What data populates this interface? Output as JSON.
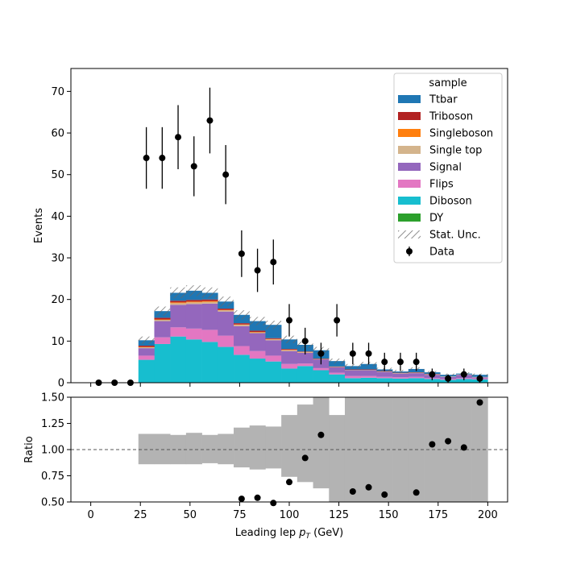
{
  "chart_data": [
    {
      "type": "stacked-histogram",
      "ylabel": "Events",
      "xlim": [
        -10,
        210
      ],
      "ylim": [
        0,
        75.5
      ],
      "x_ticks": [
        0,
        25,
        50,
        75,
        100,
        125,
        150,
        175,
        200
      ],
      "y_ticks": [
        0,
        10,
        20,
        30,
        40,
        50,
        60,
        70
      ],
      "bin_edges": [
        24,
        32,
        40,
        48,
        56,
        64,
        72,
        80,
        88,
        96,
        104,
        112,
        120,
        128,
        136,
        144,
        152,
        160,
        168,
        176,
        184,
        192,
        200
      ],
      "series": [
        {
          "name": "Diboson",
          "color": "#17becf",
          "values": [
            5.5,
            9.3,
            11.1,
            10.4,
            9.8,
            8.6,
            6.7,
            5.8,
            5.1,
            3.4,
            4.0,
            3.0,
            2.0,
            1.1,
            1.2,
            1.1,
            1.0,
            1.1,
            0.9,
            0.7,
            0.9,
            0.8
          ]
        },
        {
          "name": "Flips",
          "color": "#e377c2",
          "values": [
            1.0,
            1.6,
            2.2,
            2.6,
            2.9,
            2.7,
            2.1,
            1.8,
            1.4,
            1.1,
            0.6,
            0.5,
            0.4,
            0.5,
            0.4,
            0.3,
            0.3,
            0.3,
            0.2,
            0.2,
            0.2,
            0.2
          ]
        },
        {
          "name": "Signal",
          "color": "#9467bd",
          "values": [
            1.8,
            3.9,
            5.4,
            5.9,
            6.3,
            5.8,
            4.8,
            4.3,
            3.7,
            3.1,
            2.6,
            2.1,
            1.3,
            1.4,
            1.4,
            1.2,
            0.9,
            0.9,
            0.8,
            0.5,
            0.8,
            0.3
          ]
        },
        {
          "name": "Single top",
          "color": "#d4b48c",
          "values": [
            0.2,
            0.3,
            0.4,
            0.4,
            0.4,
            0.3,
            0.3,
            0.2,
            0.2,
            0.2,
            0.1,
            0.1,
            0.1,
            0.1,
            0.1,
            0.1,
            0.1,
            0.1,
            0.1,
            0.1,
            0.1,
            0.1
          ]
        },
        {
          "name": "Singleboson",
          "color": "#ff7f0e",
          "values": [
            0.1,
            0.1,
            0.2,
            0.2,
            0.2,
            0.1,
            0.1,
            0.1,
            0.1,
            0.1,
            0.1,
            0.0,
            0.0,
            0.0,
            0.0,
            0.0,
            0.0,
            0.0,
            0.0,
            0.0,
            0.0,
            0.0
          ]
        },
        {
          "name": "Triboson",
          "color": "#b22222",
          "values": [
            0.3,
            0.4,
            0.4,
            0.4,
            0.4,
            0.3,
            0.3,
            0.3,
            0.2,
            0.2,
            0.1,
            0.1,
            0.1,
            0.1,
            0.1,
            0.1,
            0.1,
            0.1,
            0.1,
            0.0,
            0.0,
            0.0
          ]
        },
        {
          "name": "Ttbar",
          "color": "#1f77b4",
          "values": [
            1.3,
            1.6,
            1.9,
            2.2,
            1.6,
            1.7,
            2.0,
            2.3,
            3.2,
            2.3,
            1.6,
            2.0,
            1.3,
            0.8,
            1.3,
            0.4,
            0.3,
            0.8,
            0.4,
            0.4,
            0.2,
            0.5
          ]
        }
      ],
      "stat_unc": [
        0.9,
        1.1,
        1.3,
        1.3,
        1.3,
        1.2,
        1.1,
        1.0,
        1.0,
        0.9,
        0.8,
        0.8,
        0.6,
        0.5,
        0.5,
        0.4,
        0.4,
        0.4,
        0.3,
        0.3,
        0.3,
        0.3
      ],
      "data": {
        "name": "Data",
        "x": [
          4,
          12,
          20,
          28,
          36,
          44,
          52,
          60,
          68,
          76,
          84,
          92,
          100,
          108,
          116,
          124,
          132,
          140,
          148,
          156,
          164,
          172,
          180,
          188,
          196
        ],
        "y": [
          0,
          0,
          0,
          54,
          54,
          59,
          52,
          63,
          50,
          31,
          27,
          29,
          15,
          10,
          7,
          15,
          7,
          7,
          5,
          5,
          5,
          2,
          1,
          2,
          1
        ],
        "yerr": [
          0,
          0,
          0,
          7.4,
          7.4,
          7.7,
          7.2,
          7.9,
          7.1,
          5.6,
          5.2,
          5.4,
          3.9,
          3.2,
          2.6,
          3.9,
          2.6,
          2.6,
          2.2,
          2.2,
          2.2,
          1.4,
          1.0,
          1.4,
          1.0
        ]
      },
      "legend": {
        "title": "sample",
        "placement": "upper right",
        "entries": [
          "Ttbar",
          "Triboson",
          "Singleboson",
          "Single top",
          "Signal",
          "Flips",
          "Diboson",
          "DY",
          "Stat. Unc.",
          "Data"
        ],
        "colors": [
          "#1f77b4",
          "#b22222",
          "#ff7f0e",
          "#d4b48c",
          "#9467bd",
          "#e377c2",
          "#17becf",
          "#2ca02c",
          "hatch",
          "marker"
        ]
      }
    },
    {
      "type": "scatter-ratio",
      "xlabel_prefix": "Leading lep ",
      "xlabel_var": "p",
      "xlabel_sub": "T",
      "xlabel_suffix": " (GeV)",
      "ylabel": "Ratio",
      "xlim": [
        -10,
        210
      ],
      "ylim": [
        0.5,
        1.5
      ],
      "x_ticks": [
        0,
        25,
        50,
        75,
        100,
        125,
        150,
        175,
        200
      ],
      "y_ticks": [
        "0.50",
        "0.75",
        "1.00",
        "1.25",
        "1.50"
      ],
      "reference_line": 1.0,
      "unc_band_color": "#b3b3b3",
      "unc_band": [
        [
          0.86,
          1.15
        ],
        [
          0.86,
          1.15
        ],
        [
          0.86,
          1.14
        ],
        [
          0.86,
          1.16
        ],
        [
          0.87,
          1.14
        ],
        [
          0.86,
          1.15
        ],
        [
          0.83,
          1.21
        ],
        [
          0.81,
          1.23
        ],
        [
          0.82,
          1.22
        ],
        [
          0.74,
          1.33
        ],
        [
          0.69,
          1.43
        ],
        [
          0.63,
          1.53
        ],
        [
          0.4,
          1.33
        ],
        [
          0.3,
          1.5
        ],
        [
          0.3,
          1.5
        ],
        [
          0.3,
          1.5
        ],
        [
          0.3,
          1.5
        ],
        [
          0.3,
          1.5
        ],
        [
          0.3,
          1.5
        ],
        [
          0.3,
          1.5
        ],
        [
          0.3,
          1.5
        ],
        [
          0.3,
          1.5
        ]
      ],
      "points": {
        "x": [
          76,
          84,
          92,
          100,
          108,
          116,
          132,
          140,
          148,
          164,
          172,
          180,
          188,
          196
        ],
        "y": [
          0.53,
          0.54,
          0.49,
          0.69,
          0.92,
          1.14,
          0.6,
          0.64,
          0.57,
          0.59,
          1.05,
          1.08,
          1.02,
          1.45
        ]
      }
    }
  ]
}
